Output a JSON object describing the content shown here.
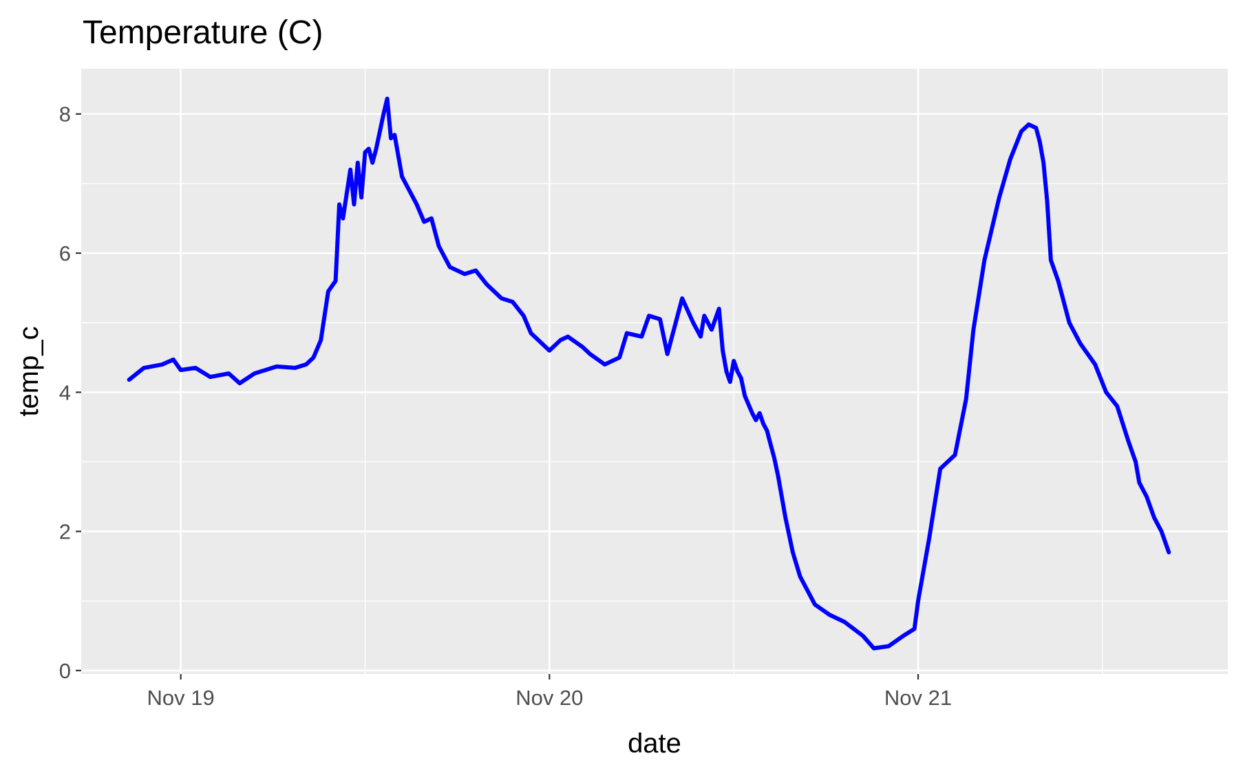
{
  "chart_data": {
    "type": "line",
    "title": "Temperature (C)",
    "xlabel": "date",
    "ylabel": "temp_c",
    "x_unit": "day-of-November (fractional)",
    "x_ticks": [
      {
        "value": 19,
        "label": "Nov 19"
      },
      {
        "value": 20,
        "label": "Nov 20"
      },
      {
        "value": 21,
        "label": "Nov 21"
      }
    ],
    "y_ticks": [
      {
        "value": 0,
        "label": "0"
      },
      {
        "value": 2,
        "label": "2"
      },
      {
        "value": 4,
        "label": "4"
      },
      {
        "value": 6,
        "label": "6"
      },
      {
        "value": 8,
        "label": "8"
      }
    ],
    "xlim": [
      18.73,
      21.84
    ],
    "ylim": [
      -0.05,
      8.65
    ],
    "grid": true,
    "background": "#ebebeb",
    "colors": {
      "line": "#0000ff",
      "grid": "#ffffff"
    },
    "series": [
      {
        "x": [
          18.86,
          18.9,
          18.95,
          18.98,
          19.0,
          19.04,
          19.08,
          19.13,
          19.16,
          19.2,
          19.26,
          19.31,
          19.34,
          19.36,
          19.38,
          19.4,
          19.42,
          19.43,
          19.44,
          19.46,
          19.47,
          19.48,
          19.49,
          19.5,
          19.51,
          19.52,
          19.53,
          19.55,
          19.56,
          19.57,
          19.58,
          19.59,
          19.6,
          19.62,
          19.64,
          19.66,
          19.68,
          19.7,
          19.73,
          19.77,
          19.8,
          19.83,
          19.87,
          19.9,
          19.93,
          19.95,
          20.0,
          20.03,
          20.05,
          20.09,
          20.11,
          20.15,
          20.19,
          20.21,
          20.25,
          20.27,
          20.3,
          20.32,
          20.36,
          20.39,
          20.41,
          20.42,
          20.44,
          20.46,
          20.47,
          20.48,
          20.49,
          20.5,
          20.51,
          20.52,
          20.53,
          20.55,
          20.56,
          20.57,
          20.58,
          20.59,
          20.6,
          20.61,
          20.62,
          20.64,
          20.66,
          20.68,
          20.72,
          20.76,
          20.8,
          20.85,
          20.88,
          20.92,
          20.96,
          20.99,
          21.0,
          21.03,
          21.06,
          21.1,
          21.13,
          21.15,
          21.18,
          21.22,
          21.25,
          21.28,
          21.3,
          21.32,
          21.33,
          21.34,
          21.35,
          21.36,
          21.38,
          21.41,
          21.44,
          21.48,
          21.51,
          21.54,
          21.57,
          21.59,
          21.6,
          21.62,
          21.64,
          21.66,
          21.68
        ],
        "y": [
          4.18,
          4.35,
          4.4,
          4.47,
          4.32,
          4.35,
          4.22,
          4.27,
          4.13,
          4.27,
          4.37,
          4.35,
          4.4,
          4.5,
          4.75,
          5.45,
          5.6,
          6.7,
          6.5,
          7.2,
          6.7,
          7.3,
          6.8,
          7.45,
          7.5,
          7.3,
          7.5,
          8.0,
          8.22,
          7.65,
          7.7,
          7.4,
          7.1,
          6.9,
          6.7,
          6.45,
          6.5,
          6.1,
          5.8,
          5.7,
          5.75,
          5.55,
          5.35,
          5.3,
          5.1,
          4.85,
          4.6,
          4.75,
          4.8,
          4.65,
          4.55,
          4.4,
          4.5,
          4.85,
          4.8,
          5.1,
          5.05,
          4.55,
          5.35,
          5.0,
          4.8,
          5.1,
          4.9,
          5.2,
          4.6,
          4.3,
          4.15,
          4.45,
          4.3,
          4.2,
          3.95,
          3.7,
          3.6,
          3.7,
          3.55,
          3.45,
          3.25,
          3.05,
          2.8,
          2.2,
          1.7,
          1.35,
          0.95,
          0.8,
          0.7,
          0.5,
          0.32,
          0.35,
          0.5,
          0.6,
          1.0,
          1.9,
          2.9,
          3.1,
          3.9,
          4.9,
          5.9,
          6.8,
          7.35,
          7.75,
          7.85,
          7.8,
          7.6,
          7.3,
          6.75,
          5.9,
          5.6,
          5.0,
          4.7,
          4.4,
          4.0,
          3.8,
          3.3,
          3.0,
          2.7,
          2.5,
          2.2,
          2.0,
          1.7
        ]
      }
    ]
  }
}
